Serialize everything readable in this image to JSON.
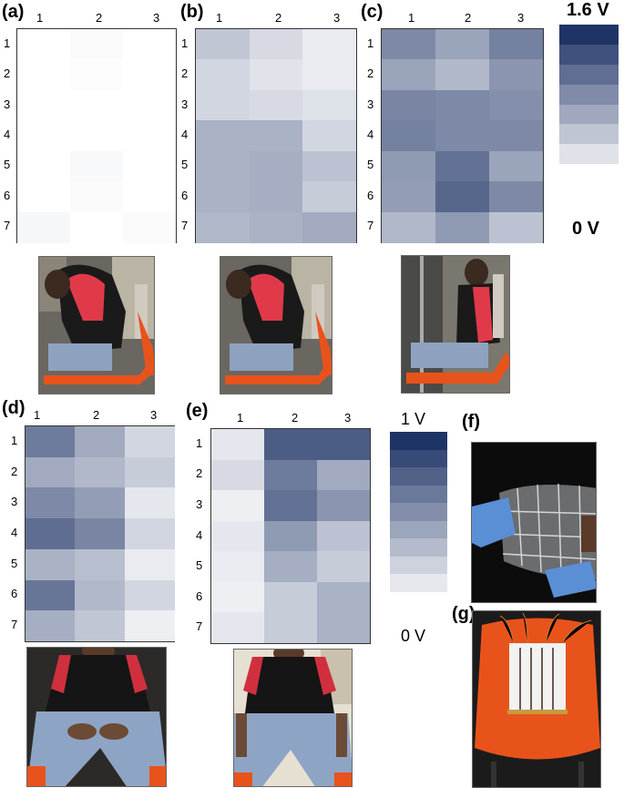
{
  "panels": [
    {
      "label": "(a)",
      "cols": [
        "1",
        "2",
        "3"
      ],
      "rows": [
        "1",
        "2",
        "3",
        "4",
        "5",
        "6",
        "7"
      ],
      "values": [
        [
          0,
          0.02,
          0
        ],
        [
          0,
          0.01,
          0
        ],
        [
          0,
          0,
          0
        ],
        [
          0,
          0,
          0
        ],
        [
          0,
          0.03,
          0
        ],
        [
          0,
          0.02,
          0
        ],
        [
          0.04,
          0,
          0.02
        ]
      ]
    },
    {
      "label": "(b)",
      "cols": [
        "1",
        "2",
        "3"
      ],
      "rows": [
        "1",
        "2",
        "3",
        "4",
        "5",
        "6",
        "7"
      ],
      "values": [
        [
          0.28,
          0.18,
          0.1
        ],
        [
          0.2,
          0.14,
          0.1
        ],
        [
          0.2,
          0.18,
          0.15
        ],
        [
          0.38,
          0.38,
          0.2
        ],
        [
          0.38,
          0.4,
          0.3
        ],
        [
          0.38,
          0.4,
          0.25
        ],
        [
          0.35,
          0.38,
          0.42
        ]
      ]
    },
    {
      "label": "(c)",
      "cols": [
        "1",
        "2",
        "3"
      ],
      "rows": [
        "1",
        "2",
        "3",
        "4",
        "5",
        "6",
        "7"
      ],
      "values": [
        [
          0.58,
          0.45,
          0.62
        ],
        [
          0.45,
          0.35,
          0.52
        ],
        [
          0.6,
          0.58,
          0.55
        ],
        [
          0.62,
          0.58,
          0.58
        ],
        [
          0.5,
          0.7,
          0.45
        ],
        [
          0.48,
          0.75,
          0.58
        ],
        [
          0.35,
          0.5,
          0.3
        ]
      ]
    },
    {
      "label": "(d)",
      "cols": [
        "1",
        "2",
        "3"
      ],
      "rows": [
        "1",
        "2",
        "3",
        "4",
        "5",
        "6",
        "7"
      ],
      "values": [
        [
          0.65,
          0.42,
          0.2
        ],
        [
          0.42,
          0.35,
          0.25
        ],
        [
          0.58,
          0.48,
          0.12
        ],
        [
          0.72,
          0.6,
          0.2
        ],
        [
          0.38,
          0.32,
          0.1
        ],
        [
          0.68,
          0.35,
          0.2
        ],
        [
          0.4,
          0.28,
          0.08
        ]
      ]
    },
    {
      "label": "(e)",
      "cols": [
        "1",
        "2",
        "3"
      ],
      "rows": [
        "1",
        "2",
        "3",
        "4",
        "5",
        "6",
        "7"
      ],
      "values": [
        [
          0.12,
          0.8,
          0.8
        ],
        [
          0.18,
          0.65,
          0.42
        ],
        [
          0.08,
          0.7,
          0.52
        ],
        [
          0.12,
          0.5,
          0.3
        ],
        [
          0.1,
          0.4,
          0.25
        ],
        [
          0.08,
          0.25,
          0.38
        ],
        [
          0.12,
          0.25,
          0.38
        ]
      ]
    }
  ],
  "scale1": {
    "max_label": "1.6 V",
    "min_label": "0 V"
  },
  "scale2": {
    "max_label": "1 V",
    "min_label": "0 V"
  },
  "extra_labels": {
    "f": "(f)",
    "g": "(g)"
  },
  "colors": {
    "low": "#ffffff",
    "high": "#1f3466",
    "border": "#333333",
    "chair": "#e8531b"
  }
}
